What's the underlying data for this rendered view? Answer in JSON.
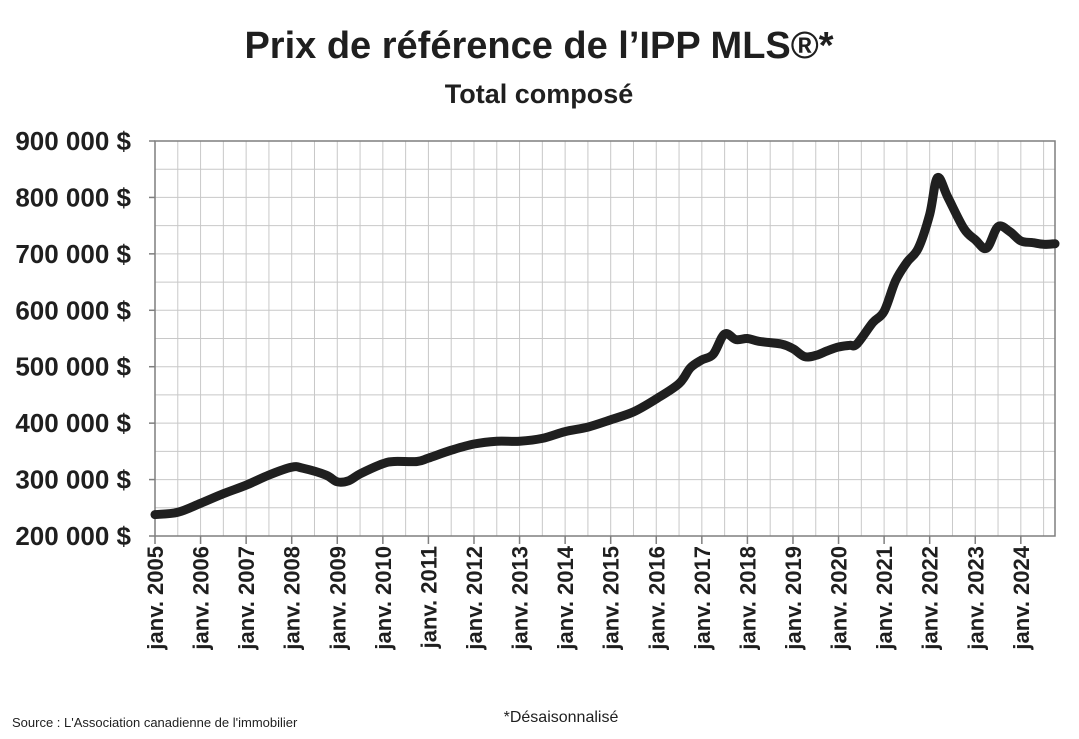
{
  "chart_data": {
    "type": "line",
    "title": "Prix de référence de l’IPP MLS®*",
    "subtitle": "Total composé",
    "ylabel": "",
    "xlabel": "",
    "ylim": [
      200000,
      900000
    ],
    "xlim": [
      2005.0,
      2024.75
    ],
    "yticks": [
      900000,
      800000,
      700000,
      600000,
      500000,
      400000,
      300000,
      200000
    ],
    "ytick_labels": [
      "900 000 $",
      "800 000 $",
      "700 000 $",
      "600 000 $",
      "500 000 $",
      "400 000 $",
      "300 000 $",
      "200 000 $"
    ],
    "xticks": [
      2005,
      2006,
      2007,
      2008,
      2009,
      2010,
      2011,
      2012,
      2013,
      2014,
      2015,
      2016,
      2017,
      2018,
      2019,
      2020,
      2021,
      2022,
      2023,
      2024
    ],
    "xtick_labels": [
      "janv. 2005",
      "janv. 2006",
      "janv. 2007",
      "janv. 2008",
      "janv. 2009",
      "janv. 2010",
      "janv. 2011",
      "janv. 2012",
      "janv. 2013",
      "janv. 2014",
      "janv. 2015",
      "janv. 2016",
      "janv. 2017",
      "janv. 2018",
      "janv. 2019",
      "janv. 2020",
      "janv. 2021",
      "janv. 2022",
      "janv. 2023",
      "janv. 2024"
    ],
    "grid": true,
    "line_color": "#1f1f1f",
    "series": [
      {
        "x": [
          2005.0,
          2005.5,
          2006.0,
          2006.5,
          2007.0,
          2007.5,
          2008.0,
          2008.25,
          2008.75,
          2009.0,
          2009.25,
          2009.5,
          2010.0,
          2010.25,
          2010.75,
          2011.0,
          2011.5,
          2012.0,
          2012.5,
          2013.0,
          2013.5,
          2014.0,
          2014.5,
          2015.0,
          2015.5,
          2016.0,
          2016.5,
          2016.75,
          2017.0,
          2017.25,
          2017.5,
          2017.75,
          2018.0,
          2018.25,
          2018.75,
          2019.0,
          2019.25,
          2019.5,
          2019.75,
          2020.0,
          2020.25,
          2020.4,
          2020.75,
          2021.0,
          2021.25,
          2021.5,
          2021.75,
          2022.0,
          2022.17,
          2022.4,
          2022.75,
          2023.0,
          2023.25,
          2023.5,
          2023.75,
          2024.0,
          2024.25,
          2024.5,
          2024.75
        ],
        "values": [
          238000,
          242000,
          258000,
          275000,
          290000,
          308000,
          322000,
          320000,
          308000,
          296000,
          298000,
          310000,
          328000,
          332000,
          332000,
          338000,
          352000,
          363000,
          368000,
          368000,
          373000,
          385000,
          393000,
          406000,
          420000,
          443000,
          470000,
          498000,
          512000,
          522000,
          558000,
          548000,
          550000,
          545000,
          540000,
          532000,
          518000,
          520000,
          528000,
          535000,
          538000,
          540000,
          578000,
          598000,
          652000,
          685000,
          710000,
          770000,
          835000,
          800000,
          745000,
          725000,
          710000,
          748000,
          740000,
          723000,
          720000,
          717000,
          718000
        ]
      }
    ]
  },
  "footer": {
    "source": "Source : L'Association canadienne de l'immobilier",
    "note": "*Désaisonnalisé"
  }
}
